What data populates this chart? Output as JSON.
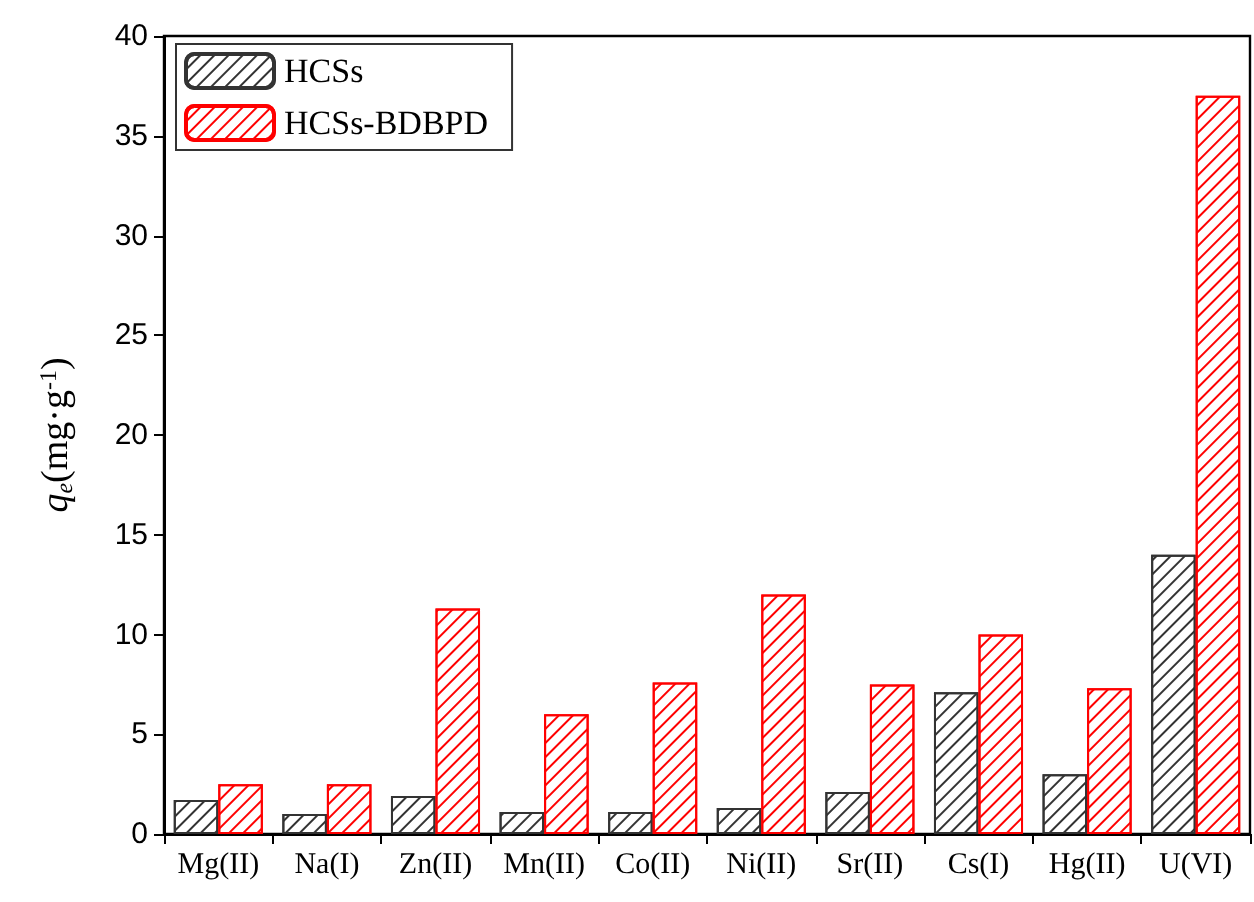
{
  "chart_data": {
    "type": "bar",
    "ylabel": "q$_{e}$(mg·g$^{-1}$)",
    "categories": [
      "Mg(II)",
      "Na(I)",
      "Zn(II)",
      "Mn(II)",
      "Co(II)",
      "Ni(II)",
      "Sr(II)",
      "Cs(I)",
      "Hg(II)",
      "U(VI)"
    ],
    "series": [
      {
        "name": "HCSs",
        "color": "#333333",
        "values": [
          1.7,
          1.0,
          1.9,
          1.1,
          1.1,
          1.3,
          2.1,
          7.1,
          3.0,
          14.0
        ]
      },
      {
        "name": "HCSs-BDBPD",
        "color": "#ff0000",
        "values": [
          2.5,
          2.5,
          11.3,
          6.0,
          7.6,
          12.0,
          7.5,
          10.0,
          7.3,
          37.0
        ]
      }
    ],
    "ylim": [
      0,
      40
    ],
    "yticks": [
      0,
      5,
      10,
      15,
      20,
      25,
      30,
      35,
      40
    ],
    "grid": false,
    "legend": "top left"
  }
}
